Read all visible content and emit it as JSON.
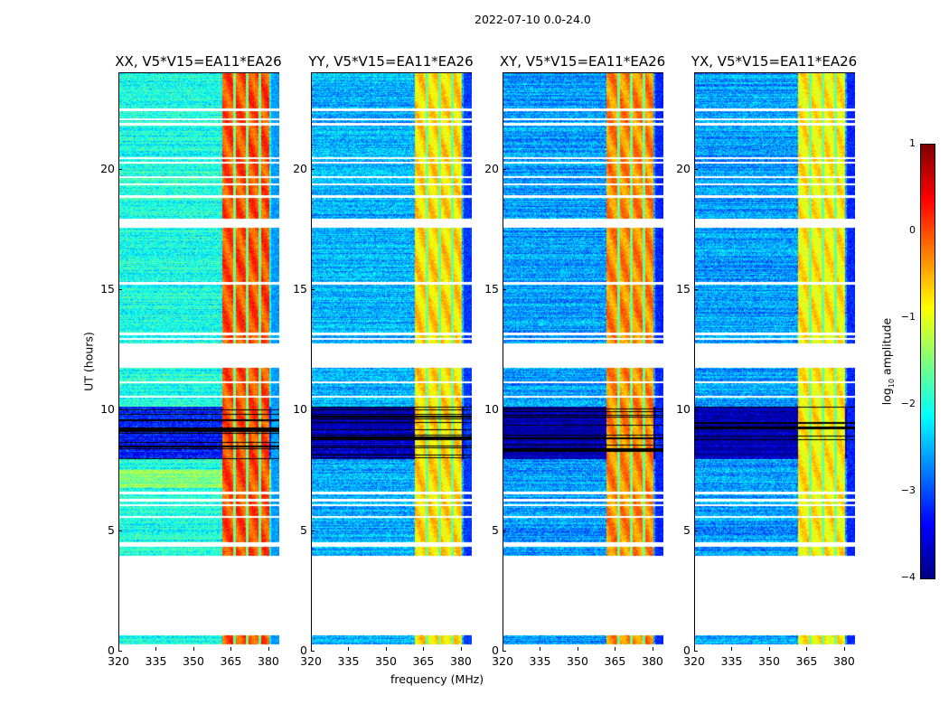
{
  "suptitle": "2022-07-10 0.0-24.0",
  "chart_data": {
    "type": "heatmap",
    "panels": [
      {
        "title": "XX, V5*V15=EA11*EA26",
        "baseline": -2.0,
        "rfi_level": 0.0
      },
      {
        "title": "YY, V5*V15=EA11*EA26",
        "baseline": -2.5,
        "rfi_level": -0.7
      },
      {
        "title": "XY, V5*V15=EA11*EA26",
        "baseline": -2.6,
        "rfi_level": -0.3
      },
      {
        "title": "YX, V5*V15=EA11*EA26",
        "baseline": -2.6,
        "rfi_level": -0.8
      }
    ],
    "xlabel": "frequency (MHz)",
    "ylabel": "UT (hours)",
    "xlim": [
      320,
      384
    ],
    "ylim": [
      0,
      24
    ],
    "xticks": [
      "320",
      "335",
      "350",
      "365",
      "380"
    ],
    "xtick_values": [
      320,
      335,
      350,
      365,
      380
    ],
    "yticks": [
      "0",
      "5",
      "10",
      "15",
      "20"
    ],
    "ytick_values": [
      0,
      5,
      10,
      15,
      20
    ],
    "rfi_band_mhz": [
      361,
      380
    ],
    "rfi_notches_mhz": [
      366,
      371,
      376
    ],
    "data_ranges_hours": [
      [
        0.3,
        0.7
      ],
      [
        4.0,
        11.8
      ],
      [
        12.8,
        17.6
      ],
      [
        18.0,
        24.0
      ]
    ],
    "flagged_rows_hours": [
      4.4,
      4.5,
      5.6,
      6.1,
      6.3,
      6.6,
      10.6,
      11.2,
      13.0,
      13.2,
      15.3,
      18.9,
      19.4,
      19.7,
      20.3,
      20.5,
      21.9,
      22.1,
      22.5
    ],
    "dark_range_hours": [
      8.0,
      10.2
    ],
    "colorbar": {
      "label": "log10 amplitude",
      "label_base": "log",
      "label_sub": "10",
      "label_rest": " amplitude",
      "ticks": [
        "1",
        "0",
        "−1",
        "−2",
        "−3",
        "−4"
      ],
      "tick_values": [
        1,
        0,
        -1,
        -2,
        -3,
        -4
      ],
      "range": [
        -4,
        1
      ],
      "colormap": "jet"
    }
  }
}
